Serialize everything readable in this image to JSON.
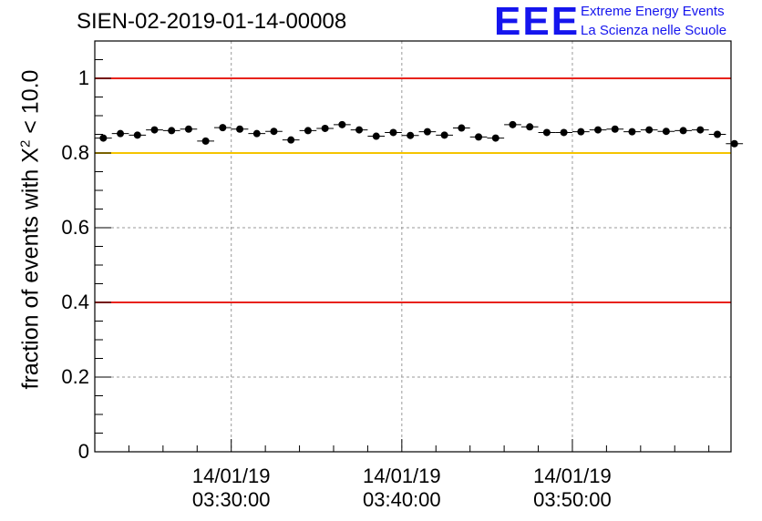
{
  "title": "SIEN-02-2019-01-14-00008",
  "logo": {
    "text": "EEE",
    "line1": "Extreme Energy Events",
    "line2": "La Scienza nelle Scuole",
    "color": "#1515ee"
  },
  "chart_data": {
    "type": "scatter",
    "ylabel_prefix": "fraction of events with X",
    "ylabel_sup": "2",
    "ylabel_suffix": " < 10.0",
    "ylim": [
      0,
      1.1
    ],
    "yticks": [
      {
        "value": 0,
        "label": "0"
      },
      {
        "value": 0.2,
        "label": "0.2"
      },
      {
        "value": 0.4,
        "label": "0.4"
      },
      {
        "value": 0.6,
        "label": "0.6"
      },
      {
        "value": 0.8,
        "label": "0.8"
      },
      {
        "value": 1.0,
        "label": "1"
      }
    ],
    "xlim_minutes": [
      0,
      37.3
    ],
    "xticks": [
      {
        "minute": 8.0,
        "date": "14/01/19",
        "time": "03:30:00"
      },
      {
        "minute": 18.0,
        "date": "14/01/19",
        "time": "03:40:00"
      },
      {
        "minute": 28.0,
        "date": "14/01/19",
        "time": "03:50:00"
      }
    ],
    "bin_width_minutes": 1.0,
    "values": [
      0.84,
      0.852,
      0.848,
      0.862,
      0.86,
      0.864,
      0.832,
      0.868,
      0.864,
      0.852,
      0.858,
      0.835,
      0.86,
      0.866,
      0.876,
      0.862,
      0.845,
      0.855,
      0.847,
      0.857,
      0.848,
      0.867,
      0.843,
      0.84,
      0.876,
      0.87,
      0.855,
      0.855,
      0.857,
      0.862,
      0.864,
      0.857,
      0.862,
      0.858,
      0.86,
      0.862,
      0.85,
      0.825
    ],
    "reference_lines": [
      {
        "value": 1.0,
        "color": "#e8221b"
      },
      {
        "value": 0.8,
        "color": "#f5c400"
      },
      {
        "value": 0.4,
        "color": "#e8221b"
      }
    ],
    "grid": true
  }
}
